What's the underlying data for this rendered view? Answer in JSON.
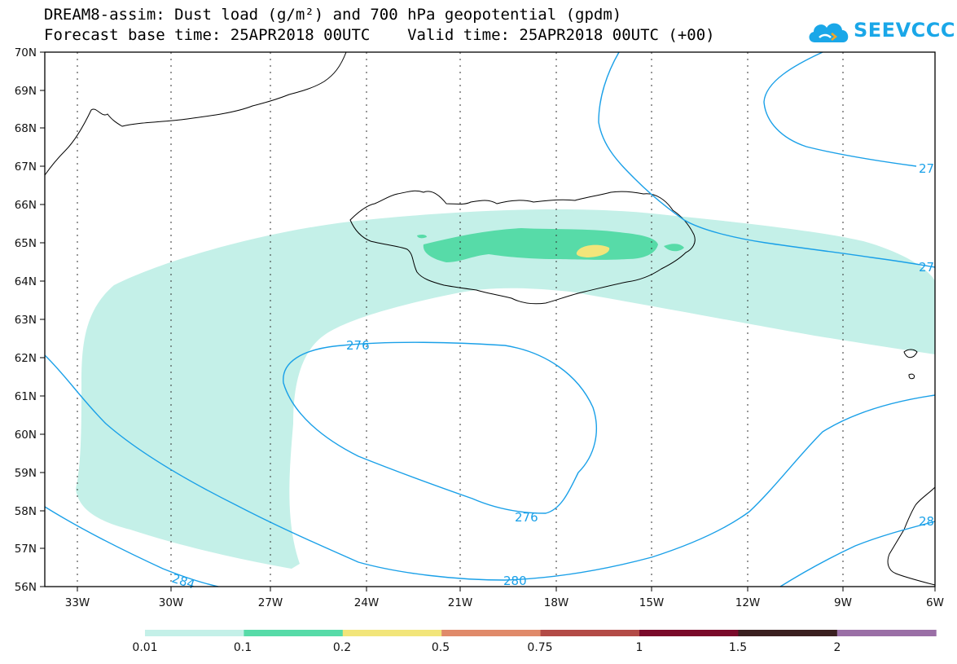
{
  "header": {
    "line1": "DREAM8-assim: Dust load (g/m²) and 700 hPa geopotential (gpdm)",
    "line2": "Forecast base time: 25APR2018 00UTC    Valid time: 25APR2018 00UTC (+00)"
  },
  "logo": {
    "text": "SEEVCCC",
    "icon": "cloud-icon",
    "color": "#1aa7e8"
  },
  "map": {
    "region": "North Atlantic / Iceland",
    "lon_range": [
      -34,
      -6
    ],
    "lat_range": [
      56,
      70
    ],
    "lat_labels": [
      "70N",
      "69N",
      "68N",
      "67N",
      "66N",
      "65N",
      "64N",
      "63N",
      "62N",
      "61N",
      "60N",
      "59N",
      "58N",
      "57N",
      "56N"
    ],
    "lon_labels": [
      "33W",
      "30W",
      "27W",
      "24W",
      "21W",
      "18W",
      "15W",
      "12W",
      "9W",
      "6W"
    ],
    "contour_color": "#1aa0e8",
    "contour_labels": [
      "276",
      "276",
      "280",
      "284",
      "27",
      "27",
      "28"
    ]
  },
  "colorbar": {
    "labels": [
      "0.01",
      "0.1",
      "0.2",
      "0.5",
      "0.75",
      "1",
      "1.5",
      "2"
    ],
    "colors": [
      "#c4f0e8",
      "#57dba8",
      "#f2e57a",
      "#e08a6a",
      "#b34b47",
      "#7a0a2a",
      "#3a2020",
      "#9a6fa6"
    ]
  }
}
